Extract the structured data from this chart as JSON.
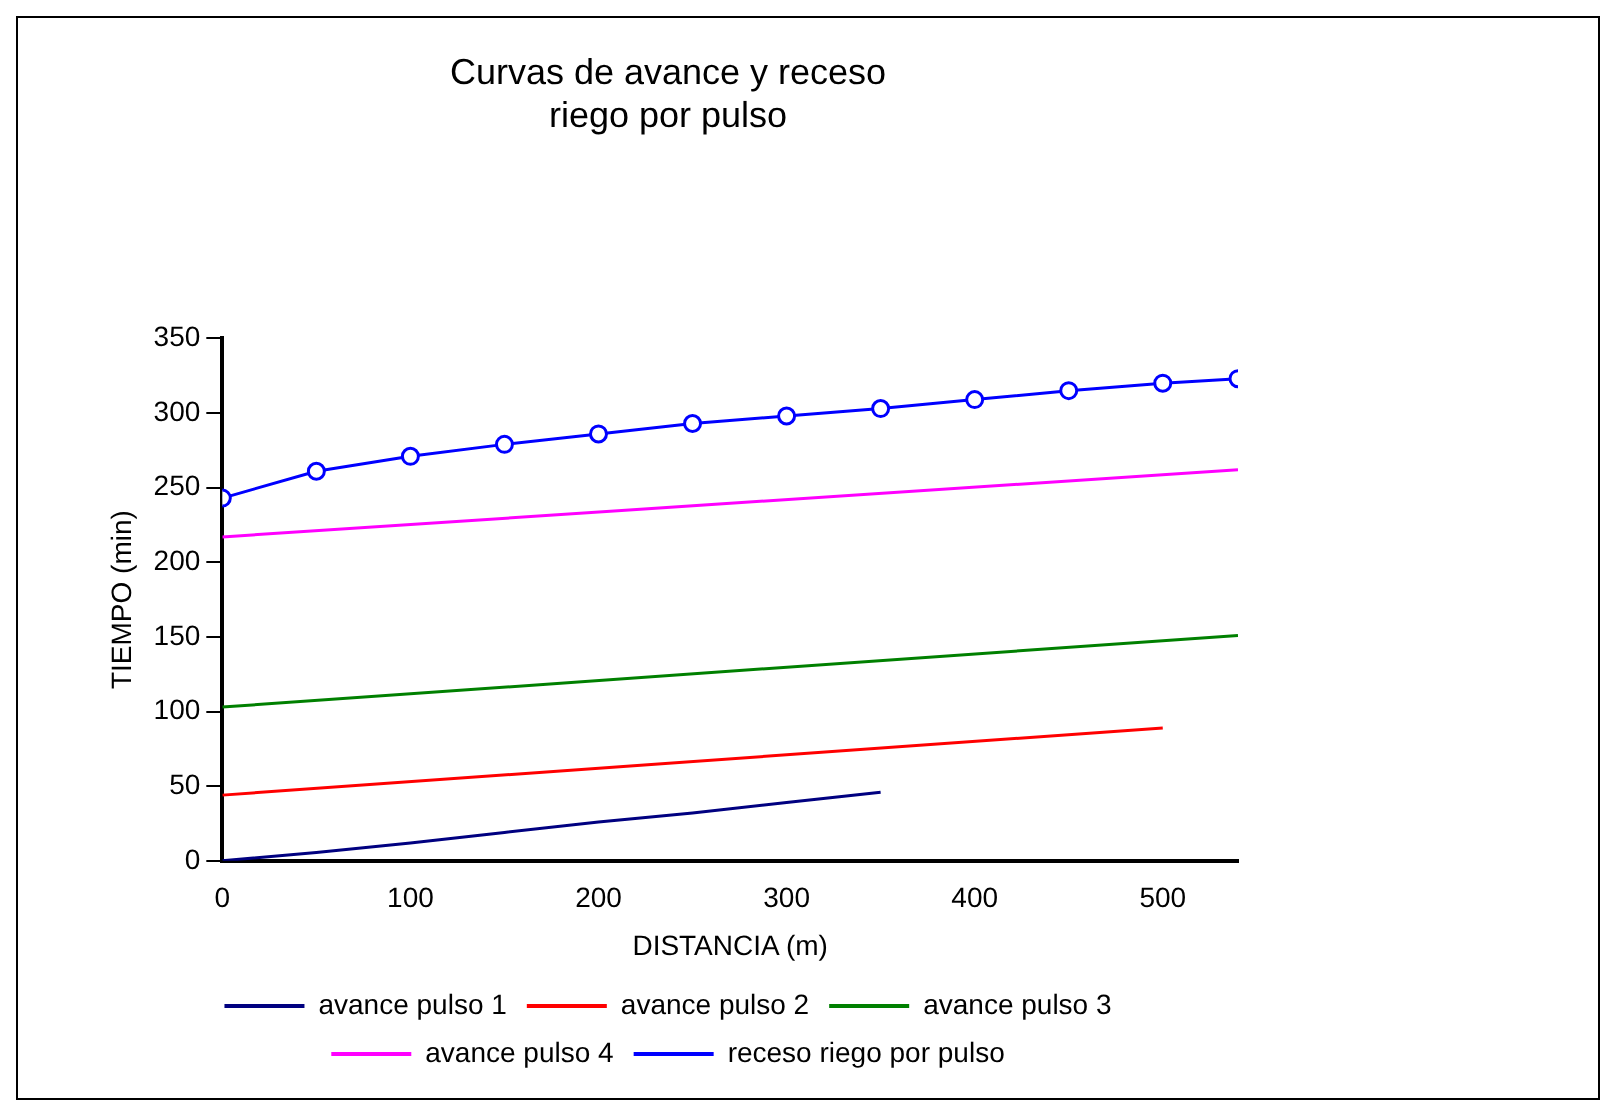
{
  "chart_data": {
    "type": "line",
    "title": "Curvas de avance y receso\nriego por pulso",
    "xlabel": "DISTANCIA (m)",
    "ylabel": "TIEMPO (min)",
    "xlim": [
      0,
      540
    ],
    "xticks": [
      0,
      100,
      200,
      300,
      400,
      500
    ],
    "ylim": [
      0,
      350
    ],
    "yticks": [
      0,
      50,
      100,
      150,
      200,
      250,
      300,
      350
    ],
    "grid": false,
    "legend": "bottom",
    "line_style": "solid",
    "series": [
      {
        "name": "avance pulso 1",
        "color": "#000080",
        "marker": "none",
        "x": [
          0,
          50,
          100,
          150,
          200,
          250,
          300,
          350
        ],
        "values": [
          0,
          5.5,
          12,
          19,
          26,
          32,
          39,
          46
        ]
      },
      {
        "name": "avance pulso 2",
        "color": "#ff0000",
        "marker": "none",
        "x": [
          0,
          500
        ],
        "values": [
          44,
          89
        ]
      },
      {
        "name": "avance pulso 3",
        "color": "#008000",
        "marker": "none",
        "x": [
          0,
          540
        ],
        "values": [
          103,
          151
        ]
      },
      {
        "name": "avance pulso 4",
        "color": "#ff00ff",
        "marker": "none",
        "x": [
          0,
          540
        ],
        "values": [
          217,
          262
        ]
      },
      {
        "name": "receso riego por pulso",
        "color": "#0000ff",
        "marker": "circle",
        "x": [
          0,
          50,
          100,
          150,
          200,
          250,
          300,
          350,
          400,
          450,
          500,
          540
        ],
        "values": [
          243,
          261,
          271,
          279,
          286,
          293,
          298,
          303,
          309,
          315,
          320,
          323
        ]
      }
    ]
  }
}
